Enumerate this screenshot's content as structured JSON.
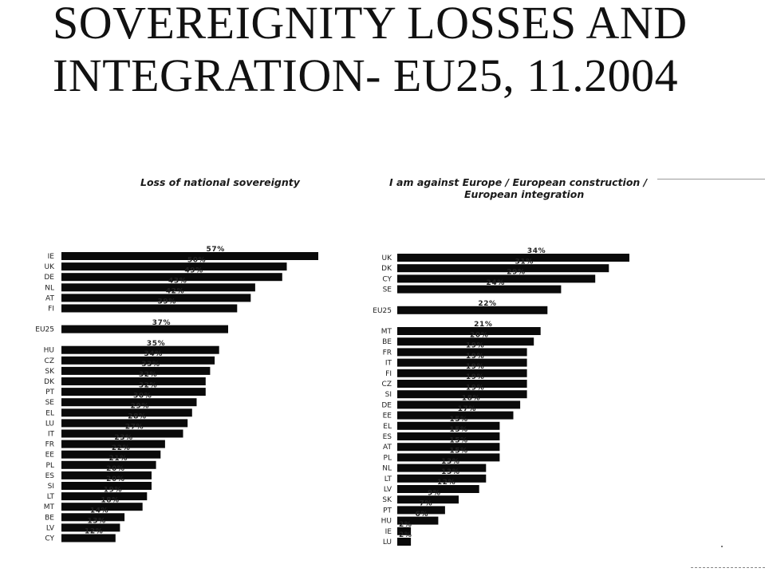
{
  "page": {
    "title_line1": "SOVEREIGNITY LOSSES AND",
    "title_line2": "INTEGRATION- EU25, 11.2004"
  },
  "chart_data": [
    {
      "type": "bar",
      "orientation": "horizontal",
      "title": "Loss of national sovereignty",
      "value_suffix": "%",
      "categories": [
        "IE",
        "UK",
        "DE",
        "NL",
        "AT",
        "FI",
        "EU25",
        "HU",
        "CZ",
        "SK",
        "DK",
        "PT",
        "SE",
        "EL",
        "LU",
        "IT",
        "FR",
        "EE",
        "PL",
        "ES",
        "SI",
        "LT",
        "MT",
        "BE",
        "LV",
        "CY"
      ],
      "values": [
        57,
        50,
        49,
        43,
        42,
        39,
        37,
        35,
        34,
        33,
        32,
        32,
        30,
        29,
        28,
        27,
        23,
        22,
        21,
        20,
        20,
        19,
        18,
        14,
        13,
        12
      ],
      "grid": false,
      "legend": "none"
    },
    {
      "type": "bar",
      "orientation": "horizontal",
      "title": "I am against Europe / European construction / European integration",
      "title_line1": "I am against Europe / European construction /",
      "title_line2": "European integration",
      "value_suffix": "%",
      "categories": [
        "UK",
        "DK",
        "CY",
        "SE",
        "EU25",
        "MT",
        "BE",
        "FR",
        "IT",
        "FI",
        "CZ",
        "SI",
        "DE",
        "EE",
        "EL",
        "ES",
        "AT",
        "PL",
        "NL",
        "LT",
        "LV",
        "SK",
        "PT",
        "HU",
        "IE",
        "LU"
      ],
      "values": [
        34,
        31,
        29,
        24,
        22,
        21,
        20,
        19,
        19,
        19,
        19,
        19,
        18,
        17,
        15,
        15,
        15,
        15,
        13,
        13,
        12,
        9,
        7,
        6,
        2,
        2
      ],
      "grid": false,
      "legend": "none"
    }
  ]
}
